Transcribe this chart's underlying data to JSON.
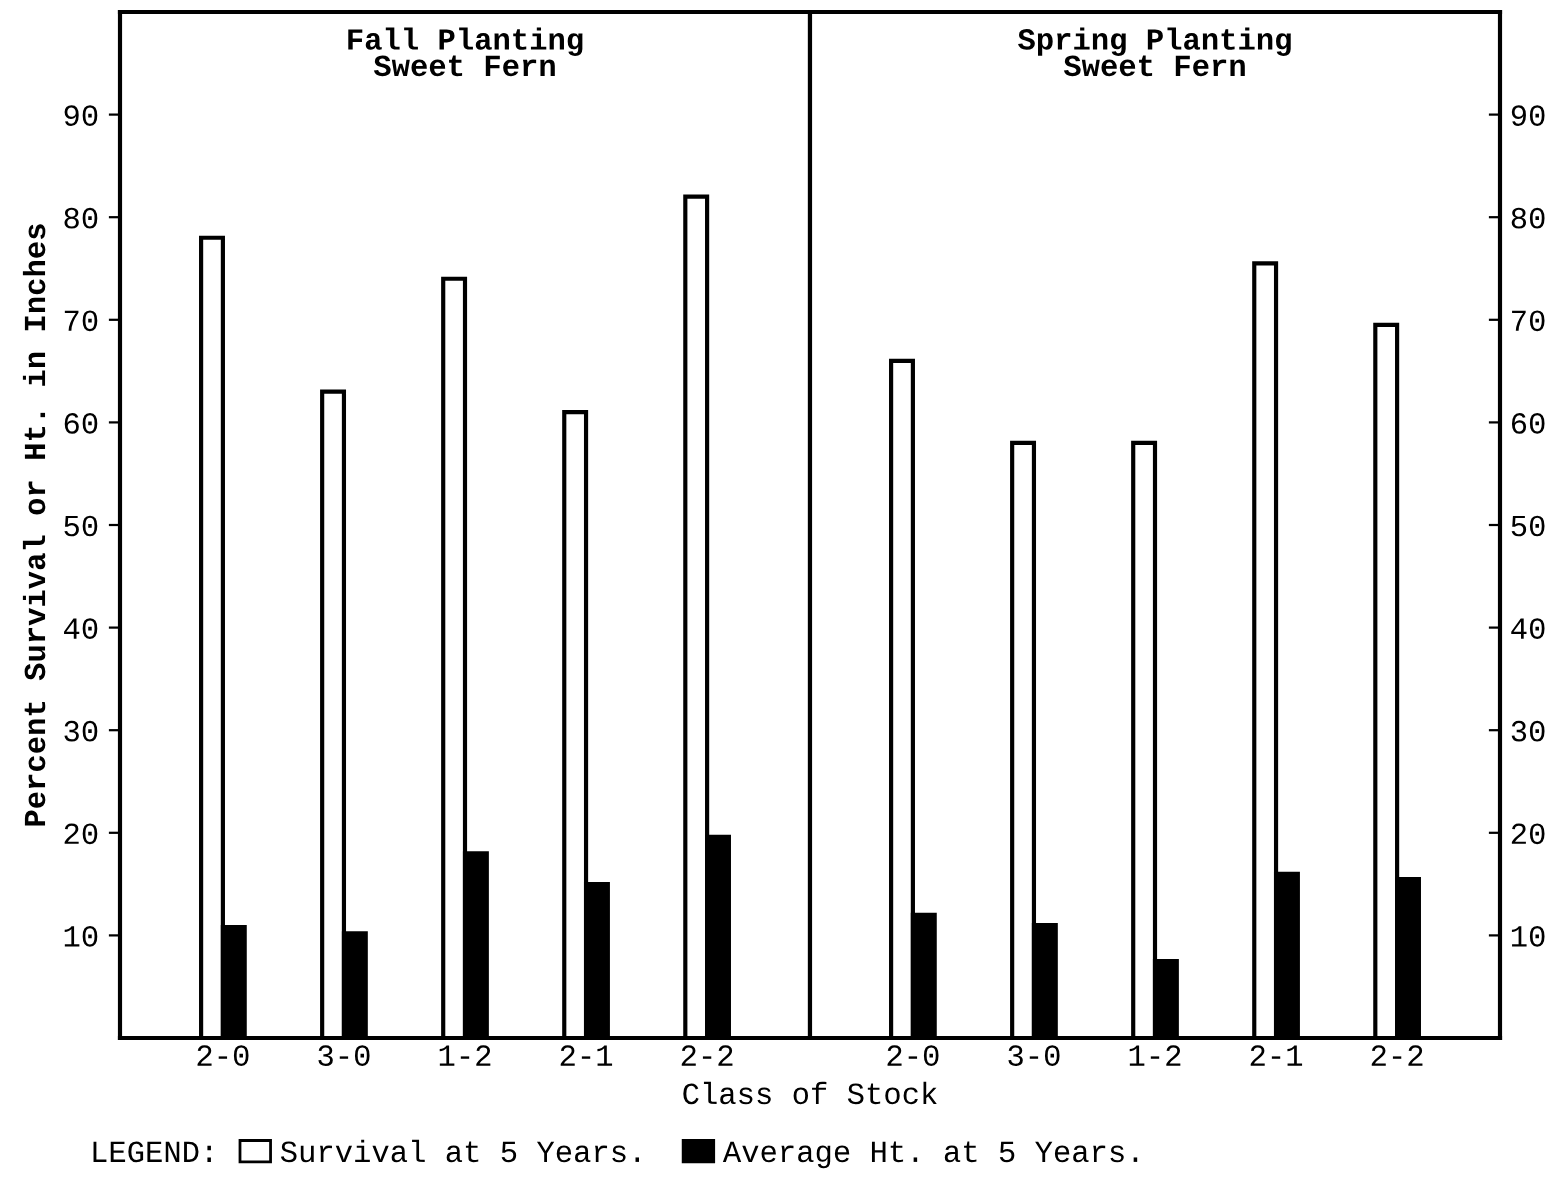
{
  "chart_data": [
    {
      "type": "bar",
      "title": "Fall Planting\nSweet Fern",
      "ylabel": "Percent Survival or Ht. in Inches",
      "xlabel": "Class of Stock",
      "legend_title": "LEGEND:",
      "legend": "bottom",
      "grid": false,
      "categories": [
        "2-0",
        "3-0",
        "1-2",
        "2-1",
        "2-2"
      ],
      "series": [
        {
          "name": "Survival at 5 Years.",
          "color": "#ffffff",
          "values": [
            78,
            63,
            74,
            61,
            82
          ]
        },
        {
          "name": "Average Ht. at 5 Years.",
          "color": "#000000",
          "values": [
            10.8,
            10.2,
            18,
            15,
            19.6
          ]
        }
      ],
      "ylim": [
        0,
        100
      ],
      "yticks": [
        10,
        20,
        30,
        40,
        50,
        60,
        70,
        80,
        90
      ]
    },
    {
      "type": "bar",
      "title": "Spring Planting\nSweet Fern",
      "grid": false,
      "categories": [
        "2-0",
        "3-0",
        "1-2",
        "2-1",
        "2-2"
      ],
      "series": [
        {
          "color": "#ffffff",
          "values": [
            66,
            58,
            58,
            75.5,
            69.5
          ]
        },
        {
          "color": "#000000",
          "values": [
            12,
            11,
            7.5,
            16,
            15.5
          ]
        }
      ],
      "ylim": [
        0,
        100
      ],
      "yticks": [
        10,
        20,
        30,
        40,
        50,
        60,
        70,
        80,
        90
      ]
    }
  ]
}
